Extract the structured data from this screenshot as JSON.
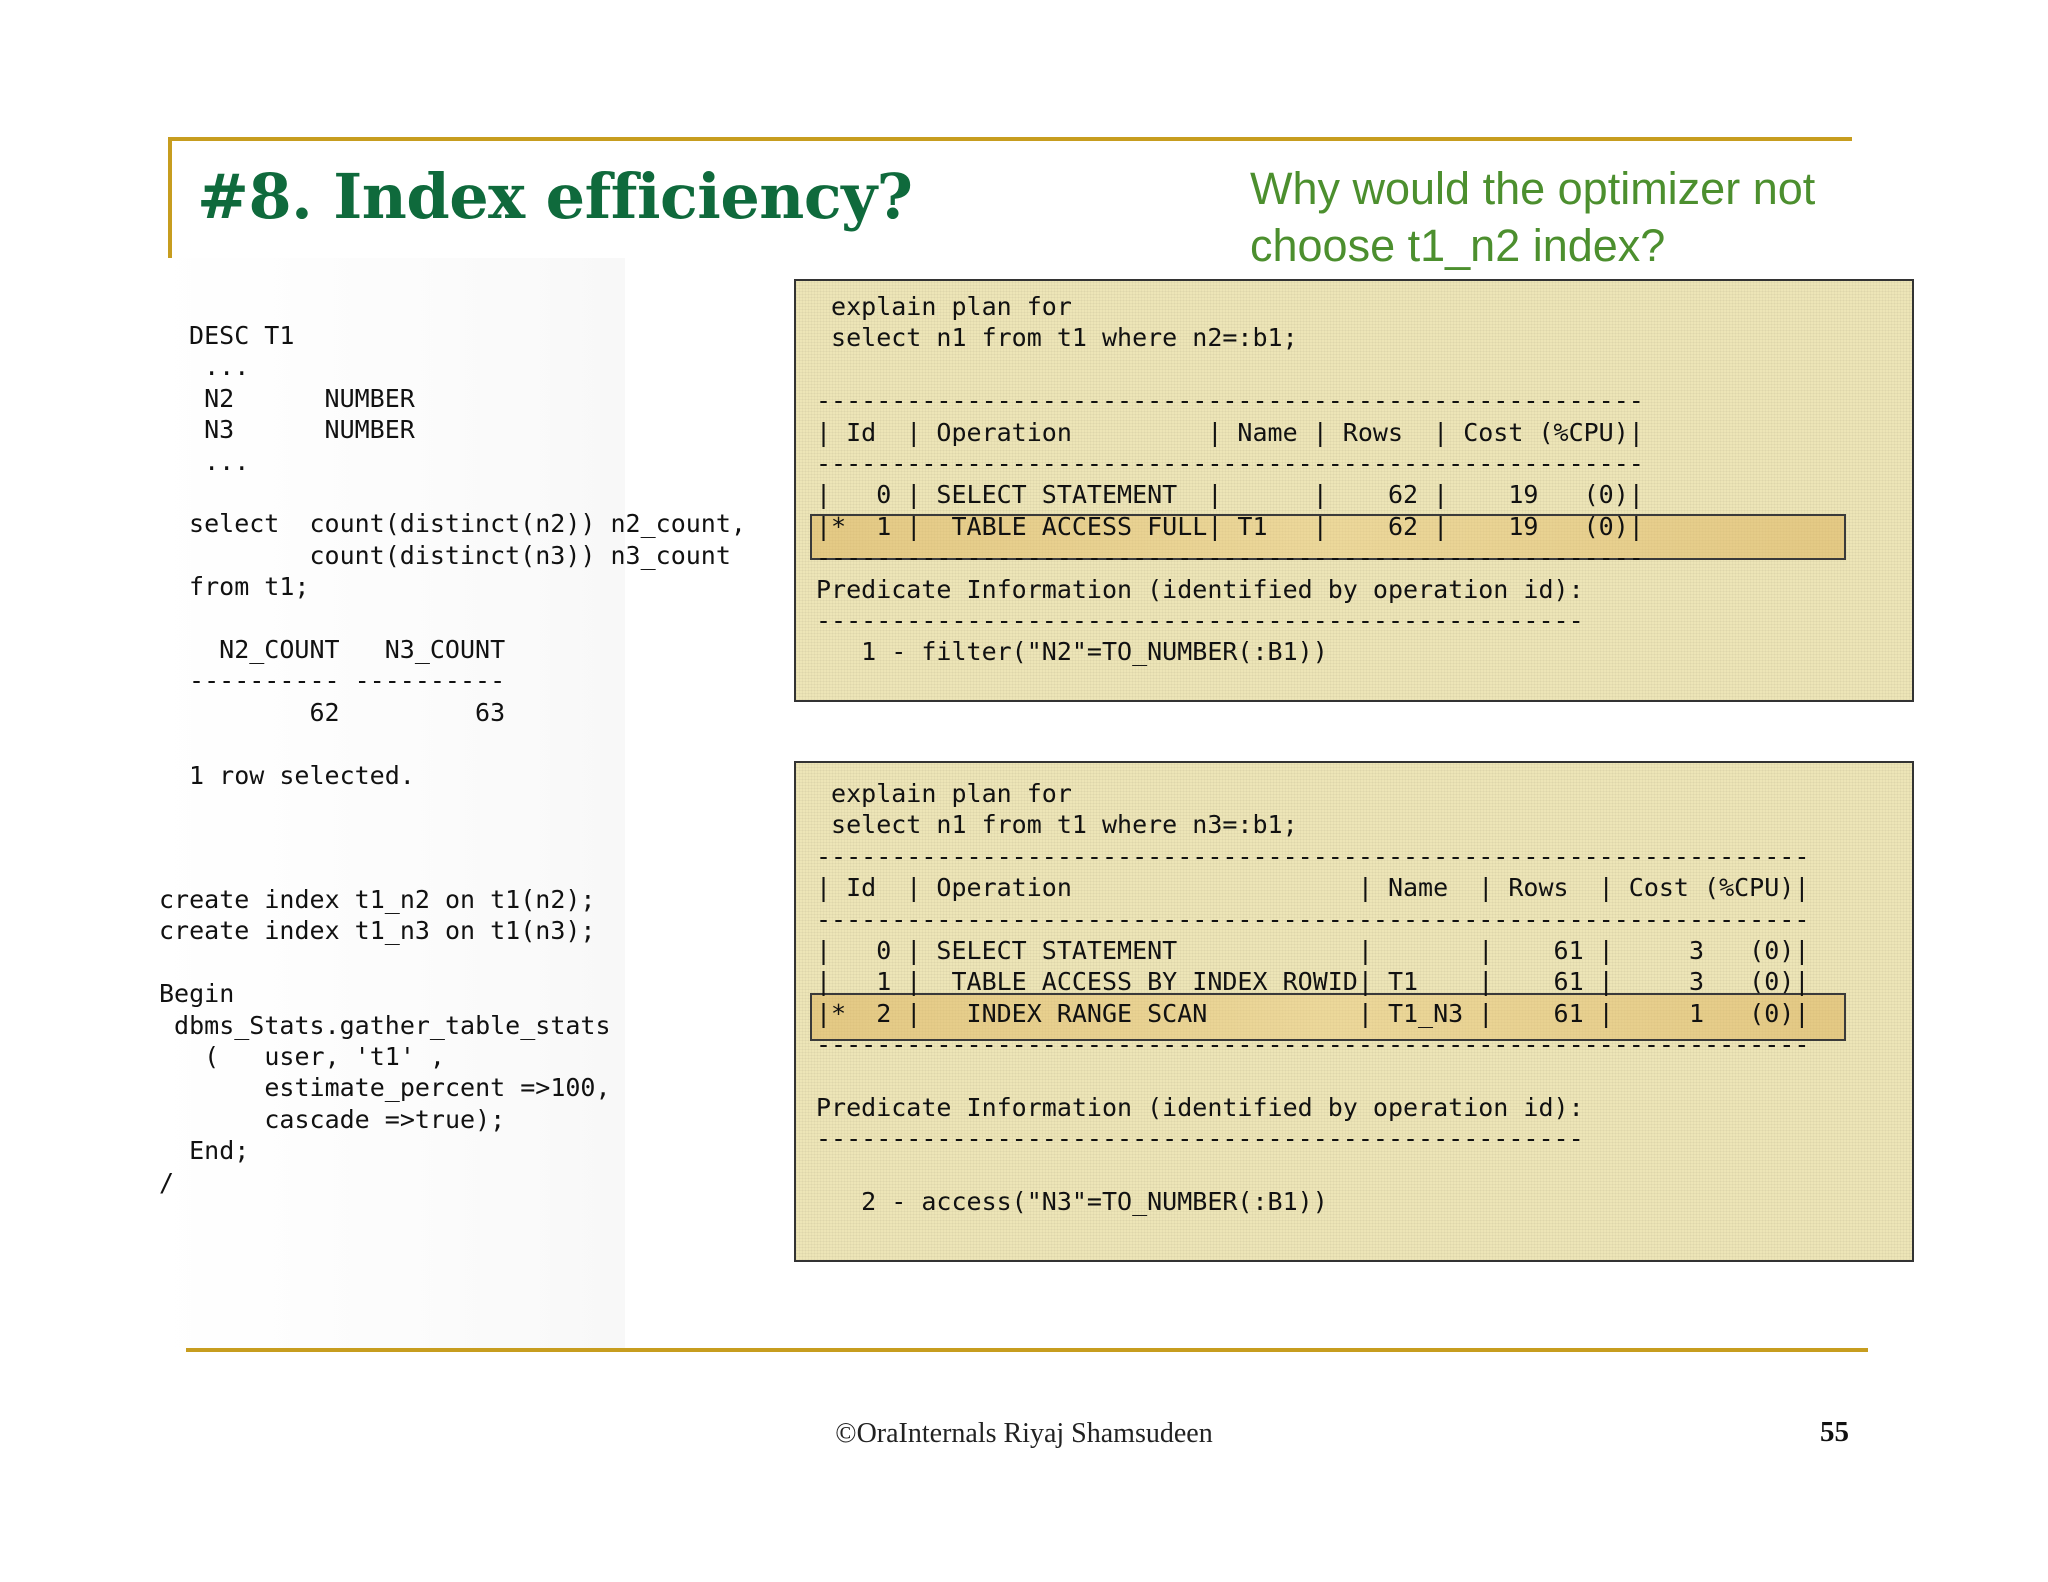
{
  "slide": {
    "title": "#8. Index efficiency?",
    "question": "Why would the optimizer not choose  t1_n2 index?",
    "code_top": " DESC T1\n  ...\n  N2      NUMBER\n  N3      NUMBER\n  ...\n\n select  count(distinct(n2)) n2_count,\n         count(distinct(n3)) n3_count\n from t1;\n\n   N2_COUNT   N3_COUNT\n ---------- ----------\n         62         63\n\n 1 row selected.",
    "code_bottom": "create index t1_n2 on t1(n2);\ncreate index t1_n3 on t1(n3);\n\nBegin\n dbms_Stats.gather_table_stats\n   (   user, 't1' ,\n       estimate_percent =>100,\n       cascade =>true);\n  End;\n/",
    "plan1": " explain plan for\n select n1 from t1 where n2=:b1;\n\n-------------------------------------------------------\n| Id  | Operation         | Name | Rows  | Cost (%CPU)|\n-------------------------------------------------------\n|   0 | SELECT STATEMENT  |      |    62 |    19   (0)|\n|*  1 |  TABLE ACCESS FULL| T1   |    62 |    19   (0)|\n-------------------------------------------------------\nPredicate Information (identified by operation id):\n---------------------------------------------------\n   1 - filter(\"N2\"=TO_NUMBER(:B1))",
    "plan2": " explain plan for\n select n1 from t1 where n3=:b1;\n------------------------------------------------------------------\n| Id  | Operation                   | Name  | Rows  | Cost (%CPU)|\n------------------------------------------------------------------\n|   0 | SELECT STATEMENT            |       |    61 |     3   (0)|\n|   1 |  TABLE ACCESS BY INDEX ROWID| T1    |    61 |     3   (0)|\n|*  2 |   INDEX RANGE SCAN          | T1_N3 |    61 |     1   (0)|\n------------------------------------------------------------------\n\nPredicate Information (identified by operation id):\n---------------------------------------------------\n\n   2 - access(\"N3\"=TO_NUMBER(:B1))",
    "footer": "©OraInternals  Riyaj Shamsudeen",
    "page_number": "55"
  },
  "colors": {
    "title": "#0f6a3c",
    "question": "#4c8f2e",
    "accent_rule": "#c79d1f",
    "plan_background": "#ede5b7",
    "highlight": "#dcb25a"
  }
}
